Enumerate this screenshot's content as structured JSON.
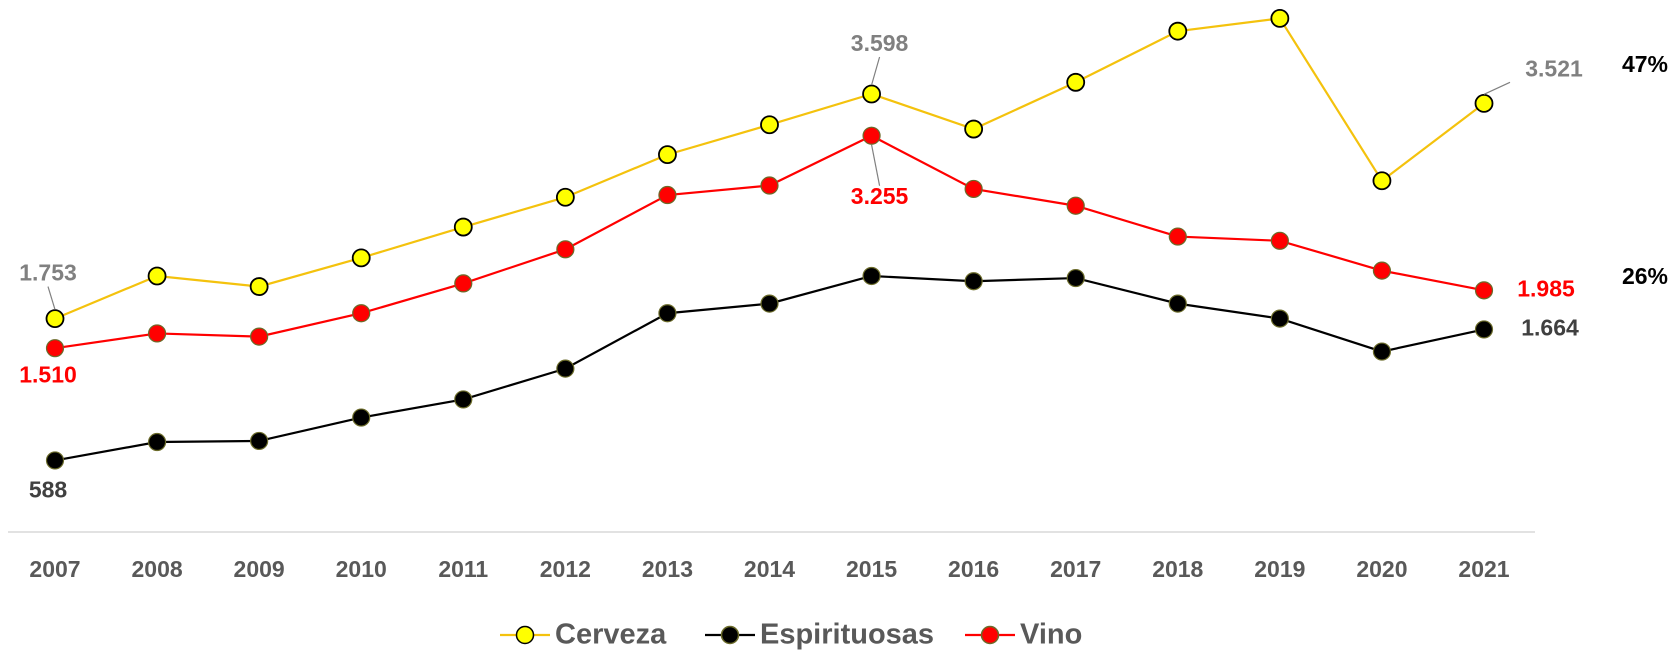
{
  "chart_data": {
    "type": "line",
    "categories": [
      "2007",
      "2008",
      "2009",
      "2010",
      "2011",
      "2012",
      "2013",
      "2014",
      "2015",
      "2016",
      "2017",
      "2018",
      "2019",
      "2020",
      "2021"
    ],
    "series": [
      {
        "name": "Cerveza",
        "color": "#f4c20d",
        "marker_color": "#ffff00",
        "label_color": "#808080",
        "values": [
          1753,
          2103,
          2016,
          2252,
          2505,
          2750,
          3100,
          3345,
          3598,
          3310,
          3694,
          4114,
          4219,
          2885,
          3521
        ],
        "value_labels": [
          "1.753",
          null,
          null,
          null,
          null,
          null,
          null,
          null,
          "3.598",
          null,
          null,
          null,
          null,
          null,
          "3.521"
        ]
      },
      {
        "name": "Espirituosas",
        "color": "#000000",
        "marker_color": "#000000",
        "label_color": "#404040",
        "values": [
          588,
          739,
          748,
          940,
          1089,
          1342,
          1797,
          1876,
          2103,
          2060,
          2086,
          1876,
          1753,
          1482,
          1664
        ],
        "value_labels": [
          "588",
          null,
          null,
          null,
          null,
          null,
          null,
          null,
          null,
          null,
          null,
          null,
          null,
          null,
          "1.664"
        ]
      },
      {
        "name": "Vino",
        "color": "#ff0000",
        "marker_color": "#ff0000",
        "label_color": "#ff0000",
        "values": [
          1510,
          1631,
          1605,
          1797,
          2042,
          2322,
          2768,
          2846,
          3255,
          2818,
          2680,
          2427,
          2392,
          2147,
          1985
        ],
        "value_labels": [
          "1.510",
          null,
          null,
          null,
          null,
          null,
          null,
          null,
          "3.255",
          null,
          null,
          null,
          null,
          null,
          "1.985"
        ]
      }
    ],
    "ylim": [
      0,
      4370
    ],
    "annotations": [
      "47%",
      "26%"
    ],
    "legend": "bottom"
  }
}
